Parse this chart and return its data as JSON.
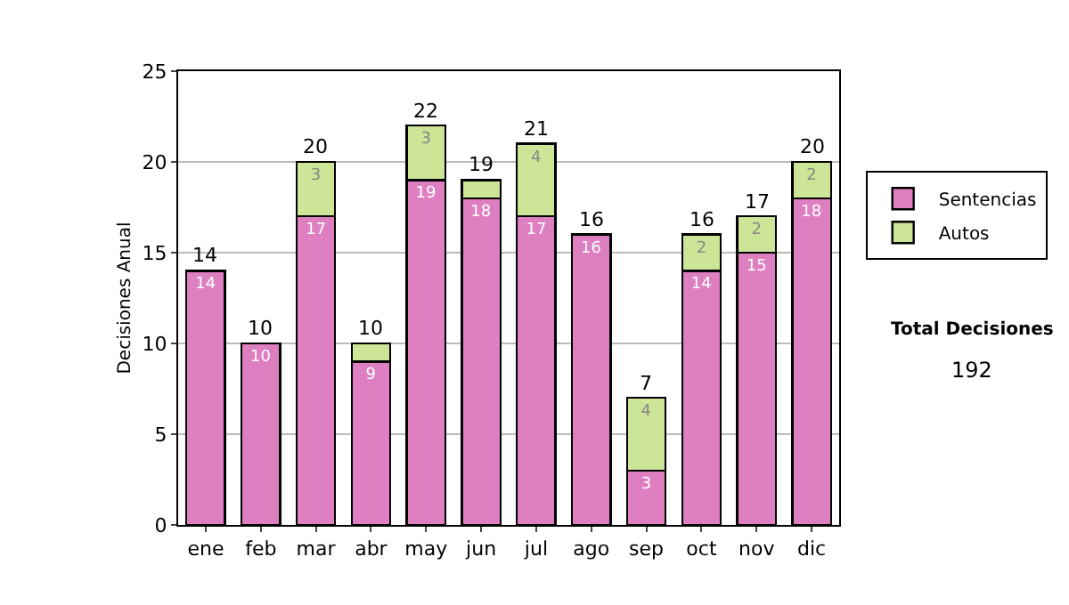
{
  "chart_data": {
    "type": "bar",
    "stacked": true,
    "ylabel": "Decisiones Anual",
    "categories": [
      "ene",
      "feb",
      "mar",
      "abr",
      "may",
      "jun",
      "jul",
      "ago",
      "sep",
      "oct",
      "nov",
      "dic"
    ],
    "series": [
      {
        "name": "Sentencias",
        "color": "#dd7fc0",
        "values": [
          14,
          10,
          17,
          9,
          19,
          18,
          17,
          16,
          3,
          14,
          15,
          18
        ],
        "value_labels": [
          "14",
          "10",
          "17",
          "9",
          "19",
          "18",
          "17",
          "16",
          "3",
          "14",
          "15",
          "18"
        ]
      },
      {
        "name": "Autos",
        "color": "#cde596",
        "values": [
          null,
          null,
          3,
          1,
          3,
          1,
          4,
          null,
          4,
          2,
          2,
          2
        ],
        "value_labels": [
          null,
          null,
          "3",
          null,
          "3",
          null,
          "4",
          null,
          "4",
          "2",
          "2",
          "2"
        ]
      }
    ],
    "totals": [
      "14",
      "10",
      "20",
      "10",
      "22",
      "19",
      "21",
      "16",
      "7",
      "16",
      "17",
      "20"
    ],
    "ylim": [
      0,
      25
    ],
    "yticks": [
      0,
      5,
      10,
      15,
      20,
      25
    ],
    "grid": "y",
    "legend": "right",
    "annotations": [
      "Total Decisiones",
      "192"
    ]
  }
}
